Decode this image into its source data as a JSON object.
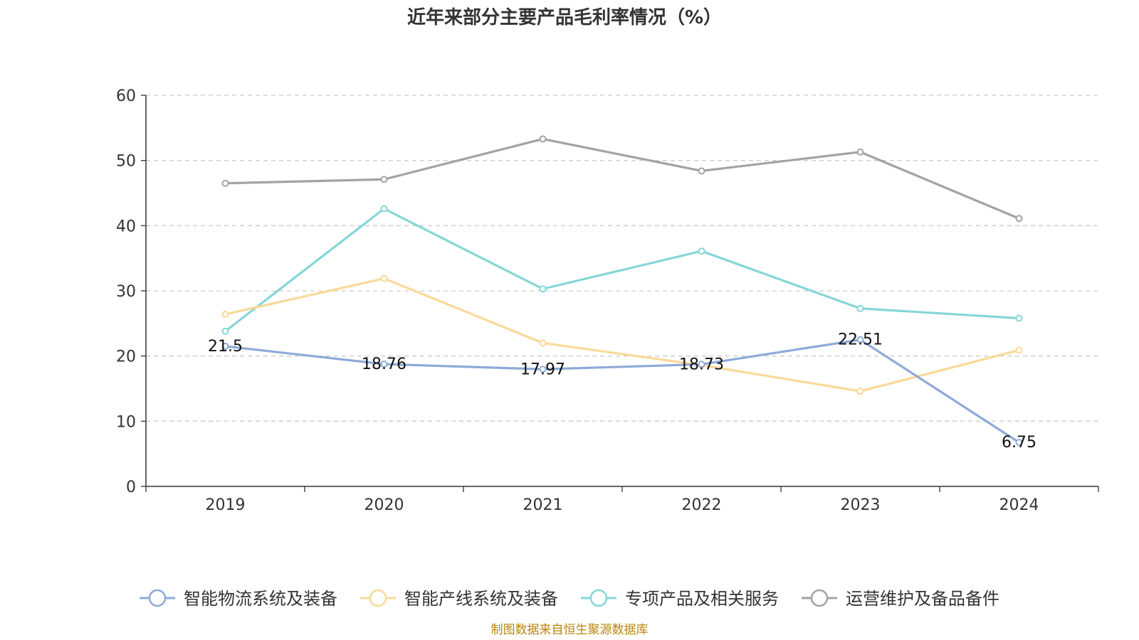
{
  "title": "近年来部分主要产品毛利率情况（%）",
  "source": "制图数据来自恒生聚源数据库",
  "colors": {
    "axis": "#333333",
    "grid": "#cccccc",
    "title": "#333333",
    "source": "#b8860b"
  },
  "chart_data": {
    "type": "line",
    "title": "近年来部分主要产品毛利率情况（%）",
    "xlabel": "",
    "ylabel": "",
    "categories": [
      "2019",
      "2020",
      "2021",
      "2022",
      "2023",
      "2024"
    ],
    "ylim": [
      0,
      60
    ],
    "yticks": [
      0,
      10,
      20,
      30,
      40,
      50,
      60
    ],
    "grid": true,
    "legend": "bottom",
    "series": [
      {
        "name": "智能物流系统及装备",
        "color": "#8eaad8",
        "values": [
          21.5,
          18.76,
          17.97,
          18.73,
          22.51,
          6.75
        ],
        "labels": [
          "21.5",
          "18.76",
          "17.97",
          "18.73",
          "22.51",
          "6.75"
        ]
      },
      {
        "name": "智能产线系统及装备",
        "color": "#f9d999",
        "values": [
          26.4,
          31.9,
          22.0,
          18.6,
          14.6,
          20.9
        ]
      },
      {
        "name": "专项产品及相关服务",
        "color": "#86d6d6",
        "values": [
          23.8,
          42.6,
          30.3,
          36.1,
          27.3,
          25.8
        ]
      },
      {
        "name": "运营维护及备品备件",
        "color": "#a3a3a3",
        "values": [
          46.5,
          47.1,
          53.3,
          48.4,
          51.3,
          41.1
        ]
      }
    ]
  }
}
